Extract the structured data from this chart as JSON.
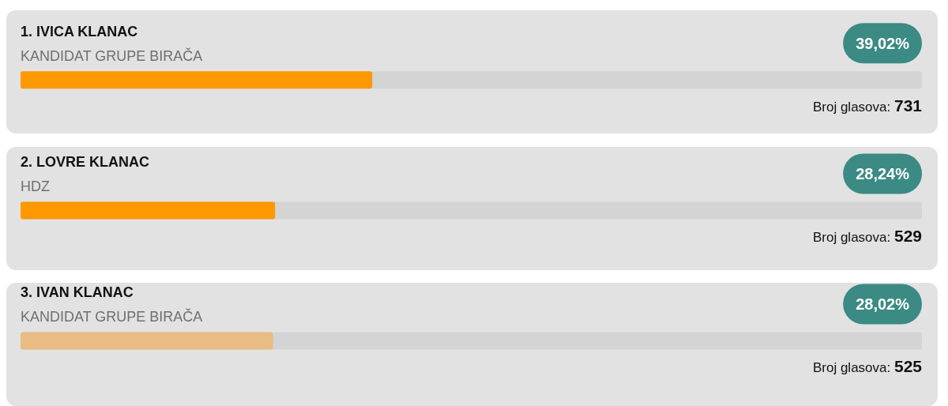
{
  "chart_data": {
    "type": "bar",
    "orientation": "horizontal",
    "categories": [
      "1. IVICA KLANAC",
      "2. LOVRE KLANAC",
      "3. IVAN KLANAC"
    ],
    "values": [
      39.02,
      28.24,
      28.02
    ],
    "value_labels": [
      "39,02%",
      "28,24%",
      "28,02%"
    ],
    "colors": [
      "#fe9800",
      "#fe9800",
      "#e8bc82"
    ],
    "xlim": [
      0,
      100
    ],
    "tick_labels": "y",
    "annotations": [
      {
        "text": "KANDIDAT GRUPE BIRAČA",
        "y": "1. IVICA KLANAC"
      },
      "Broj glasova: 731",
      {
        "text": "HDZ",
        "y": "2. LOVRE KLANAC"
      },
      "Broj glasova: 529",
      {
        "text": "KANDIDAT GRUPE BIRAČA",
        "y": "3. IVAN KLANAC"
      },
      "Broj glasova: 525"
    ]
  }
}
